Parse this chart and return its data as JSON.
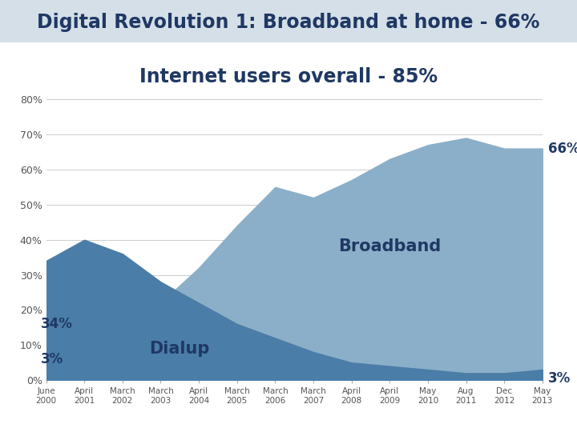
{
  "title_line1": "Digital Revolution 1: Broadband at home - 66%",
  "title_line2": "Internet users overall - 85%",
  "title_fontsize": 17,
  "x_labels": [
    "June\n2000",
    "April\n2001",
    "March\n2002",
    "March\n2003",
    "April\n2004",
    "March\n2005",
    "March\n2006",
    "March\n2007",
    "April\n2008",
    "April\n2009",
    "May\n2010",
    "Aug\n2011",
    "Dec\n2012",
    "May\n2013"
  ],
  "broadband": [
    3,
    8,
    14,
    22,
    32,
    44,
    55,
    52,
    57,
    63,
    67,
    69,
    66,
    66
  ],
  "dialup": [
    34,
    40,
    36,
    28,
    22,
    16,
    12,
    8,
    5,
    4,
    3,
    2,
    2,
    3
  ],
  "broadband_color": "#8BAFC8",
  "dialup_color": "#4A7DA8",
  "ylim": [
    0,
    80
  ],
  "yticks": [
    0,
    10,
    20,
    30,
    40,
    50,
    60,
    70,
    80
  ],
  "ytick_labels": [
    "0%",
    "10%",
    "20%",
    "30%",
    "40%",
    "50%",
    "60%",
    "70%",
    "80%"
  ],
  "label_broadband": "Broadband",
  "label_dialup": "Dialup",
  "ann_broadband_end": "66%",
  "ann_dialup_end": "3%",
  "ann_broadband_start": "3%",
  "ann_dialup_start": "34%",
  "background_color": "#FFFFFF",
  "grid_color": "#CCCCCC",
  "text_color": "#1F3864",
  "title_color": "#1F3864",
  "title_bg_color": "#C8D4E0"
}
